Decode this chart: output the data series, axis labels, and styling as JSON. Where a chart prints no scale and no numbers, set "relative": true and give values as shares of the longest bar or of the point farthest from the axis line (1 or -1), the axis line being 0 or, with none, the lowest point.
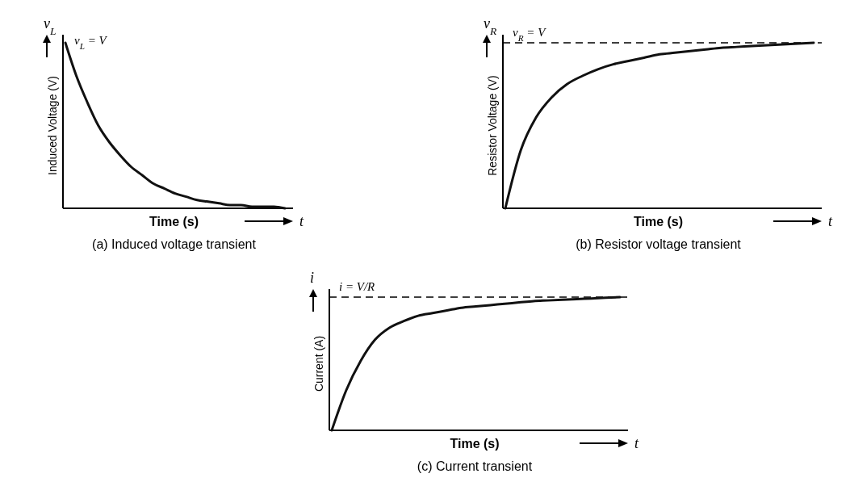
{
  "chart_data": [
    {
      "type": "line",
      "title": "(a)  Induced voltage transient",
      "xlabel": "Time (s)",
      "ylabel": "Induced Voltage (V)",
      "relative": true,
      "color": "#111111",
      "categories": [
        null,
        null,
        null,
        null,
        null,
        null,
        null,
        null,
        null,
        null,
        null,
        null,
        null,
        null,
        null,
        null,
        null,
        null,
        null,
        null,
        null
      ],
      "values": [
        1,
        0.8,
        0.64,
        0.5,
        0.4,
        0.32,
        0.25,
        0.2,
        0.15,
        0.12,
        0.09,
        0.07,
        0.05,
        0.04,
        0.03,
        0.02,
        0.02,
        0.01,
        0.01,
        0.01,
        0
      ],
      "annotations": [
        "v$_{L}$",
        "t",
        "v$_{L}$ = V"
      ]
    },
    {
      "type": "line",
      "title": "(b)  Resistor voltage transient",
      "xlabel": "Time (s)",
      "ylabel": "Resistor Voltage (V)",
      "relative": true,
      "color": "#111111",
      "categories": [
        null,
        null,
        null,
        null,
        null,
        null,
        null,
        null,
        null,
        null,
        null,
        null,
        null,
        null,
        null,
        null,
        null,
        null,
        null,
        null,
        null
      ],
      "values": [
        0,
        0.35,
        0.55,
        0.67,
        0.75,
        0.8,
        0.84,
        0.87,
        0.89,
        0.91,
        0.93,
        0.94,
        0.95,
        0.96,
        0.97,
        0.975,
        0.98,
        0.985,
        0.99,
        0.995,
        1
      ],
      "ref_lines": [
        {
          "axis": "y",
          "value": 1,
          "label": "v$_{R}$ = V",
          "line_style": "dashed"
        }
      ],
      "annotations": [
        "v$_{R}$",
        "t"
      ]
    },
    {
      "type": "line",
      "title": "(c)  Current transient",
      "xlabel": "Time (s)",
      "ylabel": "Current (A)",
      "relative": true,
      "color": "#111111",
      "categories": [
        null,
        null,
        null,
        null,
        null,
        null,
        null,
        null,
        null,
        null,
        null,
        null,
        null,
        null,
        null,
        null,
        null,
        null,
        null,
        null,
        null
      ],
      "values": [
        0,
        0.3,
        0.52,
        0.68,
        0.77,
        0.82,
        0.86,
        0.88,
        0.9,
        0.92,
        0.93,
        0.94,
        0.95,
        0.96,
        0.97,
        0.975,
        0.98,
        0.985,
        0.99,
        0.995,
        1
      ],
      "ref_lines": [
        {
          "axis": "y",
          "value": 1,
          "label": "i = V/R",
          "line_style": "dashed"
        }
      ],
      "annotations": [
        "i",
        "t"
      ]
    }
  ]
}
